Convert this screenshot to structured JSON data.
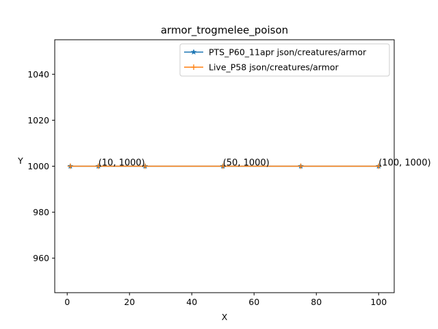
{
  "chart_data": {
    "type": "line",
    "title": "armor_trogmelee_poison",
    "xlabel": "X",
    "ylabel": "Y",
    "xlim": [
      -4,
      105
    ],
    "ylim": [
      945,
      1055
    ],
    "xticks": [
      0,
      20,
      40,
      60,
      80,
      100
    ],
    "yticks": [
      960,
      980,
      1000,
      1020,
      1040
    ],
    "grid": false,
    "legend_position": "top-right",
    "series": [
      {
        "name": "PTS_P60_11apr json/creatures/armor",
        "color": "#1f77b4",
        "marker": "star",
        "x": [
          1,
          10,
          25,
          50,
          75,
          100
        ],
        "y": [
          1000,
          1000,
          1000,
          1000,
          1000,
          1000
        ]
      },
      {
        "name": "Live_P58 json/creatures/armor",
        "color": "#ff7f0e",
        "marker": "plus",
        "x": [
          1,
          10,
          25,
          50,
          75,
          100
        ],
        "y": [
          1000,
          1000,
          1000,
          1000,
          1000,
          1000
        ]
      }
    ],
    "annotations": [
      {
        "text": "(10, 1000)",
        "x": 10,
        "y": 1000
      },
      {
        "text": "(50, 1000)",
        "x": 50,
        "y": 1000
      },
      {
        "text": "(100, 1000)",
        "x": 100,
        "y": 1000
      }
    ]
  }
}
